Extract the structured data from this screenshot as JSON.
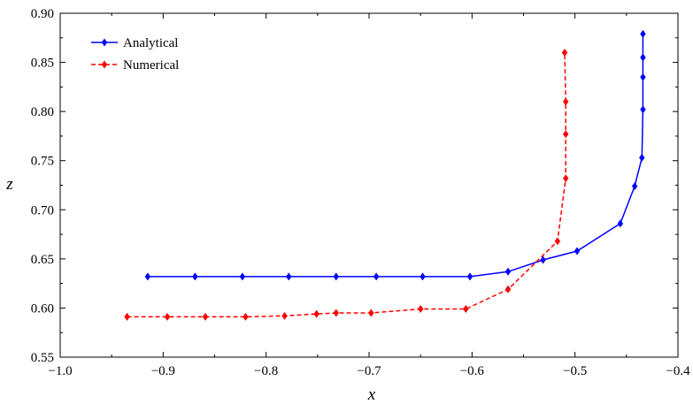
{
  "chart_data": {
    "type": "line",
    "title": "",
    "xlabel": "x",
    "ylabel": "z",
    "xlim": [
      -1.0,
      -0.4
    ],
    "ylim": [
      0.55,
      0.9
    ],
    "x_ticks": [
      -1.0,
      -0.9,
      -0.8,
      -0.7,
      -0.6,
      -0.5,
      -0.4
    ],
    "x_tick_labels": [
      "−1.0",
      "−0.9",
      "−0.8",
      "−0.7",
      "−0.6",
      "−0.5",
      "−0.4"
    ],
    "y_ticks": [
      0.55,
      0.6,
      0.65,
      0.7,
      0.75,
      0.8,
      0.85,
      0.9
    ],
    "y_tick_labels": [
      "0.55",
      "0.60",
      "0.65",
      "0.70",
      "0.75",
      "0.80",
      "0.85",
      "0.90"
    ],
    "grid": false,
    "legend_position": "top-left",
    "series": [
      {
        "name": "Analytical",
        "color": "#0000ff",
        "line_style": "solid",
        "marker": "diamond",
        "points": [
          [
            -0.915,
            0.632
          ],
          [
            -0.869,
            0.632
          ],
          [
            -0.823,
            0.632
          ],
          [
            -0.778,
            0.632
          ],
          [
            -0.732,
            0.632
          ],
          [
            -0.693,
            0.632
          ],
          [
            -0.648,
            0.632
          ],
          [
            -0.602,
            0.632
          ],
          [
            -0.565,
            0.637
          ],
          [
            -0.531,
            0.649
          ],
          [
            -0.498,
            0.658
          ],
          [
            -0.456,
            0.686
          ],
          [
            -0.442,
            0.724
          ],
          [
            -0.435,
            0.753
          ],
          [
            -0.434,
            0.802
          ],
          [
            -0.434,
            0.835
          ],
          [
            -0.434,
            0.855
          ],
          [
            -0.434,
            0.879
          ]
        ]
      },
      {
        "name": "Numerical",
        "color": "#ff0000",
        "line_style": "dashed",
        "marker": "diamond",
        "points": [
          [
            -0.935,
            0.591
          ],
          [
            -0.896,
            0.591
          ],
          [
            -0.859,
            0.591
          ],
          [
            -0.82,
            0.591
          ],
          [
            -0.782,
            0.592
          ],
          [
            -0.751,
            0.594
          ],
          [
            -0.732,
            0.595
          ],
          [
            -0.698,
            0.595
          ],
          [
            -0.65,
            0.599
          ],
          [
            -0.606,
            0.599
          ],
          [
            -0.565,
            0.619
          ],
          [
            -0.517,
            0.668
          ],
          [
            -0.509,
            0.732
          ],
          [
            -0.509,
            0.777
          ],
          [
            -0.509,
            0.81
          ],
          [
            -0.51,
            0.86
          ]
        ]
      }
    ]
  }
}
